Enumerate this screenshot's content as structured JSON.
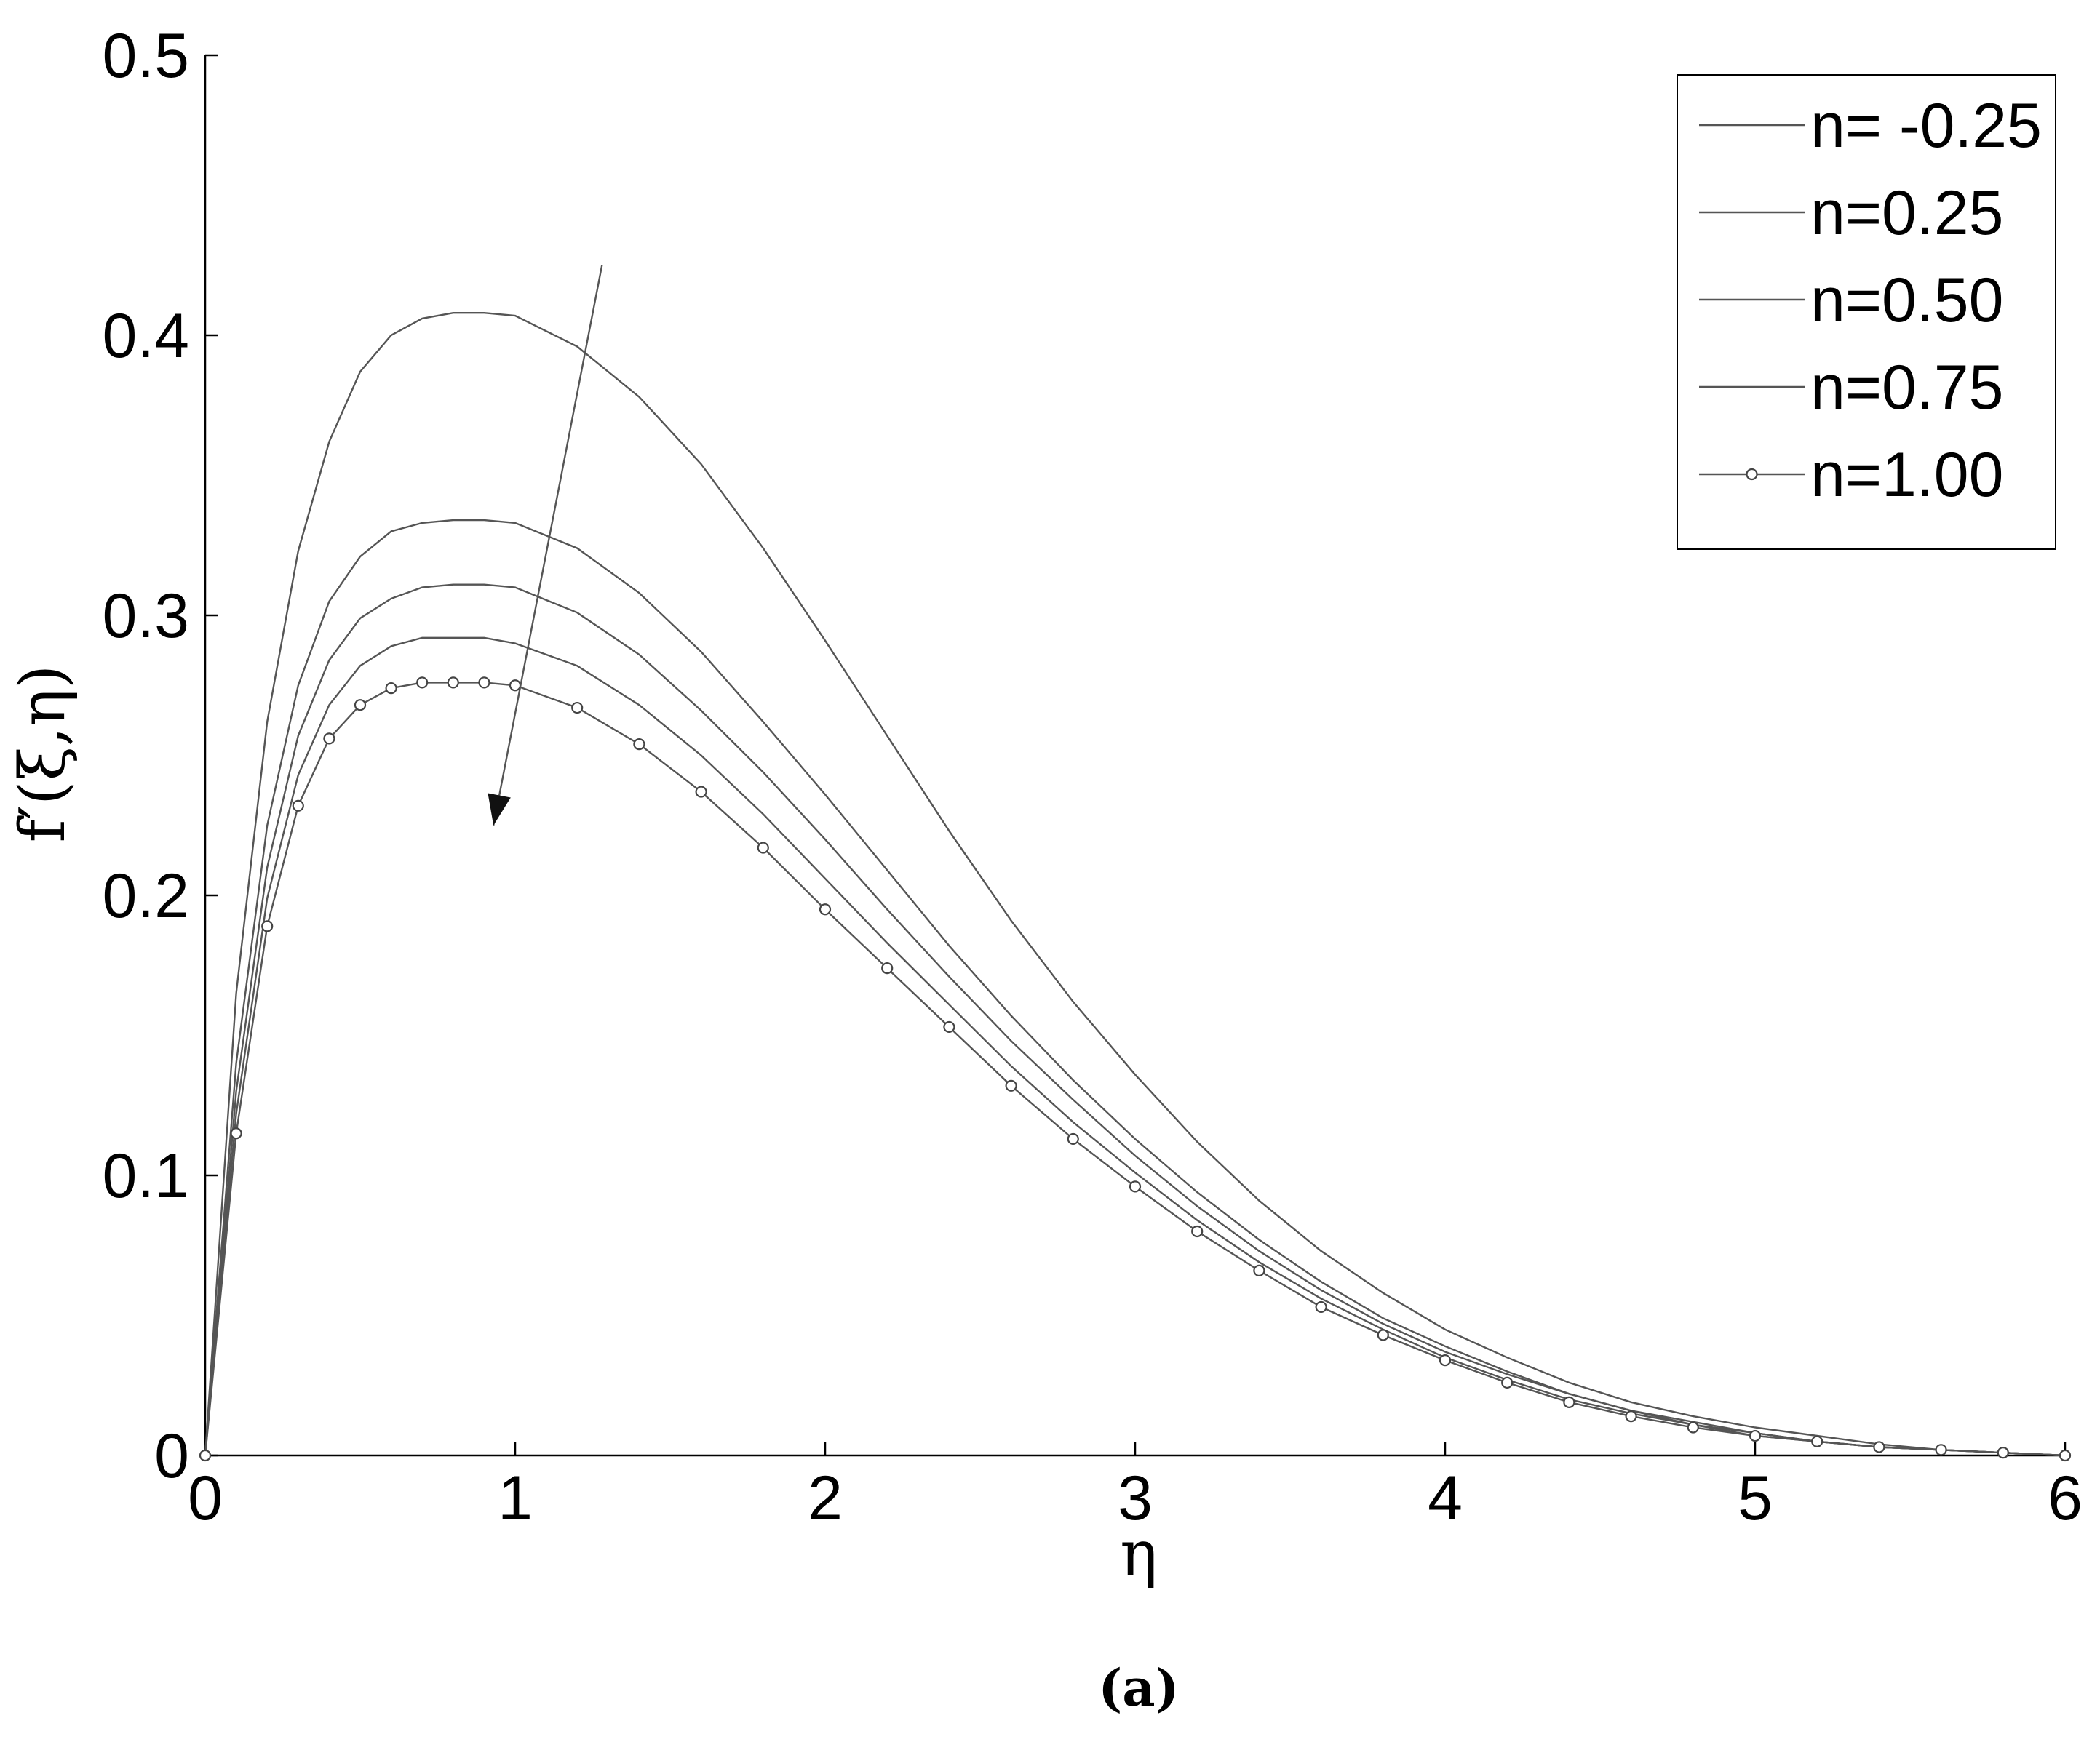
{
  "chart_data": {
    "type": "line",
    "title": "",
    "xlabel": "η",
    "ylabel": "f′(ξ,η)",
    "caption": "(a)",
    "xlim": [
      0,
      6
    ],
    "ylim": [
      0,
      0.5
    ],
    "x_ticks": [
      "0",
      "1",
      "2",
      "3",
      "4",
      "5",
      "6"
    ],
    "y_ticks": [
      "0",
      "0.1",
      "0.2",
      "0.3",
      "0.4",
      "0.5"
    ],
    "grid": false,
    "legend_position": "top-right",
    "arrow": {
      "from": [
        1.28,
        0.425
      ],
      "to": [
        0.93,
        0.225
      ],
      "meaning": "direction of increasing n"
    },
    "x": [
      0,
      0.1,
      0.2,
      0.3,
      0.4,
      0.5,
      0.6,
      0.7,
      0.8,
      0.9,
      1.0,
      1.2,
      1.4,
      1.6,
      1.8,
      2.0,
      2.2,
      2.4,
      2.6,
      2.8,
      3.0,
      3.2,
      3.4,
      3.6,
      3.8,
      4.0,
      4.2,
      4.4,
      4.6,
      4.8,
      5.0,
      5.2,
      5.4,
      5.6,
      5.8,
      6.0
    ],
    "series": [
      {
        "name": "n= -0.25",
        "marker": "none",
        "values": [
          0,
          0.165,
          0.262,
          0.323,
          0.362,
          0.387,
          0.4,
          0.406,
          0.408,
          0.408,
          0.407,
          0.396,
          0.378,
          0.354,
          0.324,
          0.291,
          0.257,
          0.223,
          0.191,
          0.162,
          0.136,
          0.112,
          0.091,
          0.073,
          0.058,
          0.045,
          0.035,
          0.026,
          0.019,
          0.014,
          0.01,
          0.007,
          0.004,
          0.002,
          0.001,
          0
        ]
      },
      {
        "name": "n=0.25",
        "marker": "none",
        "values": [
          0,
          0.14,
          0.225,
          0.275,
          0.305,
          0.321,
          0.33,
          0.333,
          0.334,
          0.334,
          0.333,
          0.324,
          0.308,
          0.287,
          0.262,
          0.236,
          0.209,
          0.182,
          0.157,
          0.134,
          0.113,
          0.094,
          0.077,
          0.062,
          0.049,
          0.039,
          0.03,
          0.022,
          0.016,
          0.012,
          0.008,
          0.005,
          0.003,
          0.002,
          0.001,
          0
        ]
      },
      {
        "name": "n=0.50",
        "marker": "none",
        "values": [
          0,
          0.13,
          0.21,
          0.257,
          0.284,
          0.299,
          0.306,
          0.31,
          0.311,
          0.311,
          0.31,
          0.301,
          0.286,
          0.266,
          0.244,
          0.22,
          0.195,
          0.171,
          0.148,
          0.127,
          0.107,
          0.089,
          0.073,
          0.059,
          0.047,
          0.037,
          0.029,
          0.022,
          0.016,
          0.011,
          0.008,
          0.005,
          0.003,
          0.002,
          0.001,
          0
        ]
      },
      {
        "name": "n=0.75",
        "marker": "none",
        "values": [
          0,
          0.122,
          0.199,
          0.243,
          0.268,
          0.282,
          0.289,
          0.292,
          0.292,
          0.292,
          0.29,
          0.282,
          0.268,
          0.25,
          0.229,
          0.206,
          0.183,
          0.161,
          0.139,
          0.119,
          0.101,
          0.084,
          0.069,
          0.056,
          0.045,
          0.035,
          0.027,
          0.02,
          0.015,
          0.011,
          0.007,
          0.005,
          0.003,
          0.002,
          0.001,
          0
        ]
      },
      {
        "name": "n=1.00",
        "marker": "circle",
        "values": [
          0,
          0.115,
          0.189,
          0.232,
          0.256,
          0.268,
          0.274,
          0.276,
          0.276,
          0.276,
          0.275,
          0.267,
          0.254,
          0.237,
          0.217,
          0.195,
          0.174,
          0.153,
          0.132,
          0.113,
          0.096,
          0.08,
          0.066,
          0.053,
          0.043,
          0.034,
          0.026,
          0.019,
          0.014,
          0.01,
          0.007,
          0.005,
          0.003,
          0.002,
          0.001,
          0
        ]
      }
    ]
  }
}
